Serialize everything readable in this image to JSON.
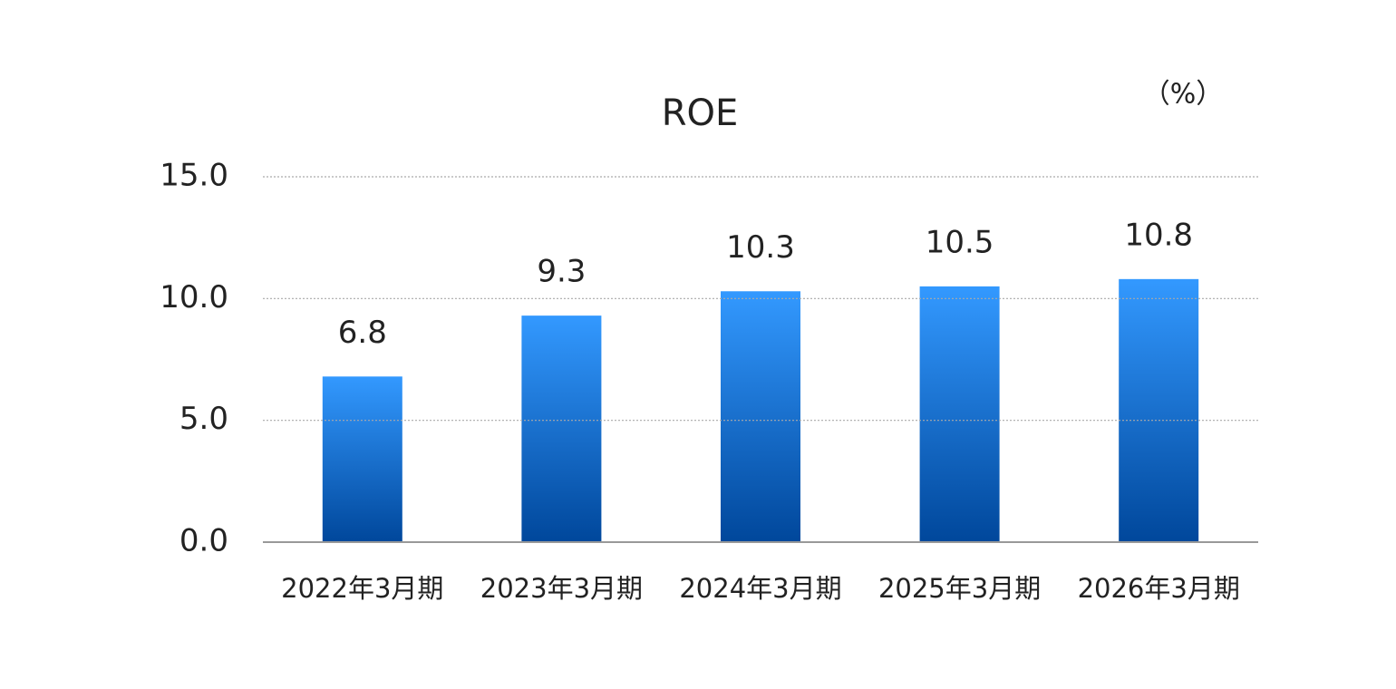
{
  "chart_data": {
    "type": "bar",
    "title": "ROE",
    "unit": "（%）",
    "categories": [
      "2022年3月期",
      "2023年3月期",
      "2024年3月期",
      "2025年3月期",
      "2026年3月期"
    ],
    "values": [
      6.8,
      9.3,
      10.3,
      10.5,
      10.8
    ],
    "colors": [
      "#3399ff",
      "#00479b"
    ],
    "ylim": [
      0,
      15
    ],
    "yticks": [
      {
        "value": 0,
        "label": "0.0"
      },
      {
        "value": 5,
        "label": "5.0"
      },
      {
        "value": 10,
        "label": "10.0"
      },
      {
        "value": 15,
        "label": "15.0"
      }
    ],
    "grid": true
  }
}
